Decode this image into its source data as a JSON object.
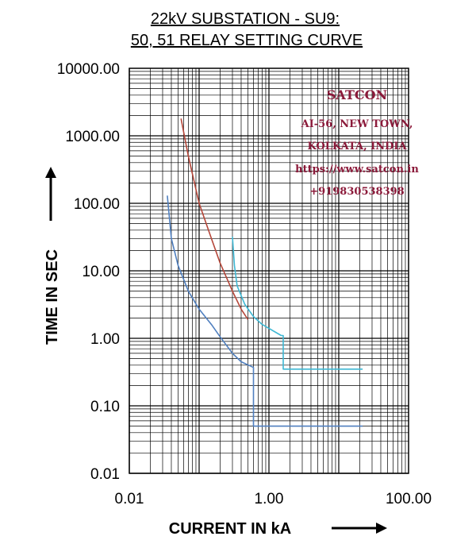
{
  "chart_data": {
    "type": "line",
    "title_line1": "22kV SUBSTATION - SU9:",
    "title_line2": "50, 51 RELAY SETTING CURVE",
    "xlabel": "CURRENT IN  kA",
    "ylabel": "TIME IN SEC",
    "x_scale": "log",
    "y_scale": "log",
    "xlim": [
      0.01,
      100
    ],
    "ylim": [
      0.01,
      10000
    ],
    "x_tick_labels": [
      "0.01",
      "1.00",
      "100.00"
    ],
    "y_tick_labels": [
      "0.01",
      "0.10",
      "1.00",
      "10.00",
      "100.00",
      "1000.00",
      "10000.00"
    ],
    "grid": true,
    "annotations": [
      "SATCON",
      "AI-56, NEW TOWN,",
      "KOLKATA, INDIA",
      "https://www.satcon.in",
      "+919830538398"
    ],
    "series": [
      {
        "color": "#4f7fbf",
        "points": [
          [
            0.035,
            130
          ],
          [
            0.04,
            30
          ],
          [
            0.05,
            12
          ],
          [
            0.07,
            5
          ],
          [
            0.1,
            2.7
          ],
          [
            0.15,
            1.6
          ],
          [
            0.2,
            1.05
          ],
          [
            0.3,
            0.6
          ],
          [
            0.4,
            0.45
          ],
          [
            0.6,
            0.37
          ],
          [
            0.6,
            0.05
          ],
          [
            22,
            0.05
          ]
        ]
      },
      {
        "color": "#b5473a",
        "points": [
          [
            0.055,
            1800
          ],
          [
            0.07,
            500
          ],
          [
            0.1,
            100
          ],
          [
            0.15,
            30
          ],
          [
            0.2,
            13
          ],
          [
            0.3,
            5
          ],
          [
            0.4,
            2.7
          ],
          [
            0.5,
            1.9
          ]
        ]
      },
      {
        "color": "#3fb8d4",
        "points": [
          [
            0.3,
            32
          ],
          [
            0.32,
            12
          ],
          [
            0.35,
            6
          ],
          [
            0.45,
            3.2
          ],
          [
            0.6,
            2.1
          ],
          [
            0.8,
            1.6
          ],
          [
            1.5,
            1.1
          ],
          [
            1.6,
            1.1
          ],
          [
            1.6,
            0.35
          ],
          [
            22,
            0.35
          ]
        ]
      }
    ]
  }
}
